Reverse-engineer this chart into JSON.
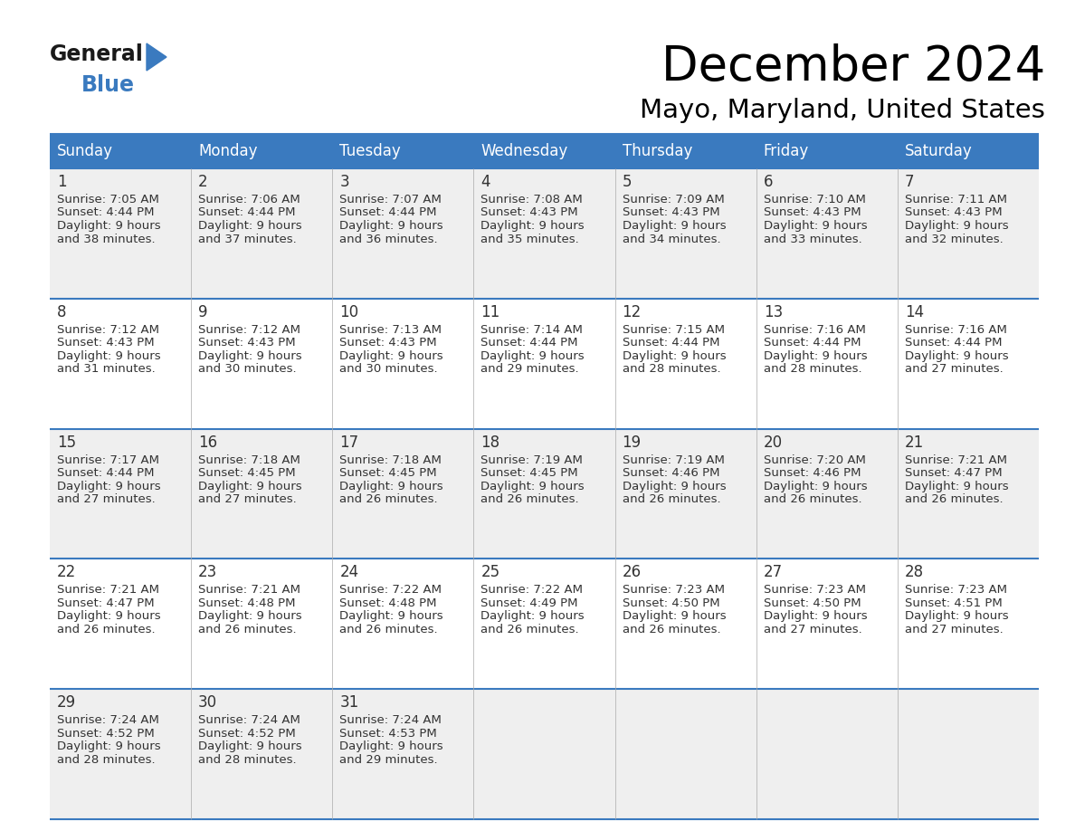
{
  "title": "December 2024",
  "subtitle": "Mayo, Maryland, United States",
  "header_color": "#3a7abf",
  "header_text_color": "#ffffff",
  "cell_bg_even": "#efefef",
  "cell_bg_odd": "#ffffff",
  "border_color": "#3a7abf",
  "text_color": "#333333",
  "days_of_week": [
    "Sunday",
    "Monday",
    "Tuesday",
    "Wednesday",
    "Thursday",
    "Friday",
    "Saturday"
  ],
  "weeks": [
    [
      {
        "day": 1,
        "sunrise": "7:05 AM",
        "sunset": "4:44 PM",
        "daylight": "9 hours and 38 minutes."
      },
      {
        "day": 2,
        "sunrise": "7:06 AM",
        "sunset": "4:44 PM",
        "daylight": "9 hours and 37 minutes."
      },
      {
        "day": 3,
        "sunrise": "7:07 AM",
        "sunset": "4:44 PM",
        "daylight": "9 hours and 36 minutes."
      },
      {
        "day": 4,
        "sunrise": "7:08 AM",
        "sunset": "4:43 PM",
        "daylight": "9 hours and 35 minutes."
      },
      {
        "day": 5,
        "sunrise": "7:09 AM",
        "sunset": "4:43 PM",
        "daylight": "9 hours and 34 minutes."
      },
      {
        "day": 6,
        "sunrise": "7:10 AM",
        "sunset": "4:43 PM",
        "daylight": "9 hours and 33 minutes."
      },
      {
        "day": 7,
        "sunrise": "7:11 AM",
        "sunset": "4:43 PM",
        "daylight": "9 hours and 32 minutes."
      }
    ],
    [
      {
        "day": 8,
        "sunrise": "7:12 AM",
        "sunset": "4:43 PM",
        "daylight": "9 hours and 31 minutes."
      },
      {
        "day": 9,
        "sunrise": "7:12 AM",
        "sunset": "4:43 PM",
        "daylight": "9 hours and 30 minutes."
      },
      {
        "day": 10,
        "sunrise": "7:13 AM",
        "sunset": "4:43 PM",
        "daylight": "9 hours and 30 minutes."
      },
      {
        "day": 11,
        "sunrise": "7:14 AM",
        "sunset": "4:44 PM",
        "daylight": "9 hours and 29 minutes."
      },
      {
        "day": 12,
        "sunrise": "7:15 AM",
        "sunset": "4:44 PM",
        "daylight": "9 hours and 28 minutes."
      },
      {
        "day": 13,
        "sunrise": "7:16 AM",
        "sunset": "4:44 PM",
        "daylight": "9 hours and 28 minutes."
      },
      {
        "day": 14,
        "sunrise": "7:16 AM",
        "sunset": "4:44 PM",
        "daylight": "9 hours and 27 minutes."
      }
    ],
    [
      {
        "day": 15,
        "sunrise": "7:17 AM",
        "sunset": "4:44 PM",
        "daylight": "9 hours and 27 minutes."
      },
      {
        "day": 16,
        "sunrise": "7:18 AM",
        "sunset": "4:45 PM",
        "daylight": "9 hours and 27 minutes."
      },
      {
        "day": 17,
        "sunrise": "7:18 AM",
        "sunset": "4:45 PM",
        "daylight": "9 hours and 26 minutes."
      },
      {
        "day": 18,
        "sunrise": "7:19 AM",
        "sunset": "4:45 PM",
        "daylight": "9 hours and 26 minutes."
      },
      {
        "day": 19,
        "sunrise": "7:19 AM",
        "sunset": "4:46 PM",
        "daylight": "9 hours and 26 minutes."
      },
      {
        "day": 20,
        "sunrise": "7:20 AM",
        "sunset": "4:46 PM",
        "daylight": "9 hours and 26 minutes."
      },
      {
        "day": 21,
        "sunrise": "7:21 AM",
        "sunset": "4:47 PM",
        "daylight": "9 hours and 26 minutes."
      }
    ],
    [
      {
        "day": 22,
        "sunrise": "7:21 AM",
        "sunset": "4:47 PM",
        "daylight": "9 hours and 26 minutes."
      },
      {
        "day": 23,
        "sunrise": "7:21 AM",
        "sunset": "4:48 PM",
        "daylight": "9 hours and 26 minutes."
      },
      {
        "day": 24,
        "sunrise": "7:22 AM",
        "sunset": "4:48 PM",
        "daylight": "9 hours and 26 minutes."
      },
      {
        "day": 25,
        "sunrise": "7:22 AM",
        "sunset": "4:49 PM",
        "daylight": "9 hours and 26 minutes."
      },
      {
        "day": 26,
        "sunrise": "7:23 AM",
        "sunset": "4:50 PM",
        "daylight": "9 hours and 26 minutes."
      },
      {
        "day": 27,
        "sunrise": "7:23 AM",
        "sunset": "4:50 PM",
        "daylight": "9 hours and 27 minutes."
      },
      {
        "day": 28,
        "sunrise": "7:23 AM",
        "sunset": "4:51 PM",
        "daylight": "9 hours and 27 minutes."
      }
    ],
    [
      {
        "day": 29,
        "sunrise": "7:24 AM",
        "sunset": "4:52 PM",
        "daylight": "9 hours and 28 minutes."
      },
      {
        "day": 30,
        "sunrise": "7:24 AM",
        "sunset": "4:52 PM",
        "daylight": "9 hours and 28 minutes."
      },
      {
        "day": 31,
        "sunrise": "7:24 AM",
        "sunset": "4:53 PM",
        "daylight": "9 hours and 29 minutes."
      },
      null,
      null,
      null,
      null
    ]
  ],
  "logo_general_color": "#1a1a1a",
  "logo_blue_color": "#3a7abf",
  "logo_triangle_color": "#3a7abf"
}
